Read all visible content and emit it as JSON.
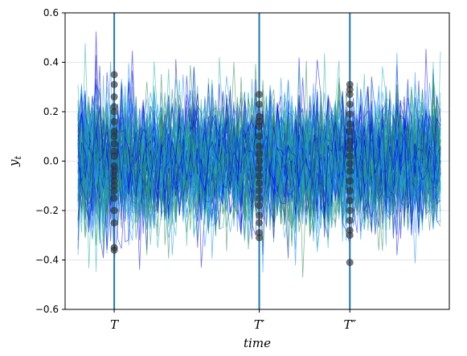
{
  "chart_data": {
    "type": "line",
    "title": "",
    "xlabel": "time",
    "ylabel": "y",
    "ylabel_subscript": "t",
    "ylim": [
      -0.6,
      0.6
    ],
    "yticks": [
      -0.6,
      -0.4,
      -0.2,
      0.0,
      0.2,
      0.4,
      0.6
    ],
    "ytick_labels": [
      "−0.6",
      "−0.4",
      "−0.2",
      "0.0",
      "0.2",
      "0.4",
      "0.6"
    ],
    "grid": "horizontal",
    "legend": "none",
    "n_paths": 90,
    "n_steps": 101,
    "path_std": 0.13,
    "path_colors": [
      "#0000ee",
      "#2e8b57",
      "#20b2aa",
      "#1e90ff"
    ],
    "vertical_markers": [
      {
        "label": "T",
        "step": 10
      },
      {
        "label": "T′",
        "step": 50
      },
      {
        "label": "T″",
        "step": 75
      }
    ],
    "marker_line_color": "#1f77b4",
    "cross_section_points": {
      "T": [
        0.35,
        0.31,
        0.26,
        0.22,
        0.2,
        0.16,
        0.12,
        0.1,
        0.07,
        0.04,
        0.02,
        -0.02,
        -0.04,
        -0.06,
        -0.08,
        -0.1,
        -0.12,
        -0.15,
        -0.2,
        -0.25,
        -0.35,
        -0.36
      ],
      "T′": [
        0.27,
        0.23,
        0.18,
        0.16,
        0.14,
        0.1,
        0.06,
        0.03,
        0.0,
        -0.03,
        -0.06,
        -0.09,
        -0.12,
        -0.15,
        -0.18,
        -0.22,
        -0.25,
        -0.29,
        -0.31
      ],
      "T″": [
        0.31,
        0.29,
        0.27,
        0.23,
        0.19,
        0.15,
        0.12,
        0.08,
        0.05,
        0.02,
        -0.01,
        -0.04,
        -0.08,
        -0.12,
        -0.16,
        -0.2,
        -0.24,
        -0.28,
        -0.3,
        -0.41
      ]
    },
    "point_color": "#333333"
  }
}
